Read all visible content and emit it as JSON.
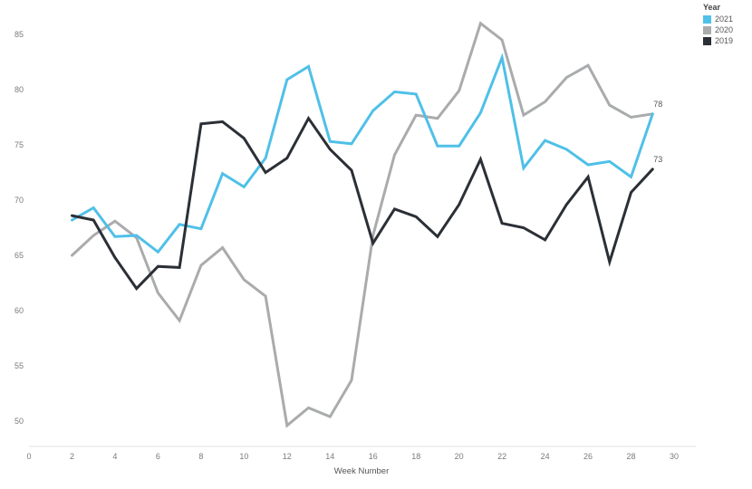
{
  "chart_data": {
    "type": "line",
    "xlabel": "Week Number",
    "ylabel": "",
    "xlim": [
      0,
      30
    ],
    "ylim": [
      47.5,
      87.5
    ],
    "x_ticks": [
      0,
      2,
      4,
      6,
      8,
      10,
      12,
      14,
      16,
      18,
      20,
      22,
      24,
      26,
      28,
      30
    ],
    "y_ticks": [
      50,
      55,
      60,
      65,
      70,
      75,
      80,
      85
    ],
    "grid": false,
    "legend": {
      "title": "Year",
      "position": "top-right",
      "entries": [
        {
          "label": "2021",
          "color": "#4fc0e8"
        },
        {
          "label": "2020",
          "color": "#a9abac"
        },
        {
          "label": "2019",
          "color": "#2b2f36"
        }
      ]
    },
    "x": [
      2,
      3,
      4,
      5,
      6,
      7,
      8,
      9,
      10,
      11,
      12,
      13,
      14,
      15,
      16,
      17,
      18,
      19,
      20,
      21,
      22,
      23,
      24,
      25,
      26,
      27,
      28,
      29
    ],
    "series": [
      {
        "name": "2020",
        "color": "#a9abac",
        "values": [
          65.0,
          66.8,
          68.1,
          66.6,
          61.6,
          59.1,
          64.1,
          65.7,
          62.8,
          61.3,
          49.6,
          51.2,
          50.4,
          53.7,
          66.8,
          74.1,
          77.7,
          77.4,
          79.9,
          86.0,
          84.5,
          77.7,
          78.9,
          81.1,
          82.2,
          78.6,
          77.5,
          77.8
        ],
        "end_label": "78"
      },
      {
        "name": "2021",
        "color": "#4fc0e8",
        "values": [
          68.2,
          69.3,
          66.7,
          66.8,
          65.3,
          67.8,
          67.4,
          72.4,
          71.2,
          73.8,
          80.9,
          82.1,
          75.3,
          75.1,
          78.1,
          79.8,
          79.6,
          74.9,
          74.9,
          77.9,
          82.9,
          72.9,
          75.4,
          74.6,
          73.2,
          73.5,
          72.1,
          77.8
        ]
      },
      {
        "name": "2019",
        "color": "#2b2f36",
        "values": [
          68.6,
          68.2,
          64.8,
          62.0,
          64.0,
          63.9,
          76.9,
          77.1,
          75.6,
          72.5,
          73.8,
          77.4,
          74.6,
          72.7,
          66.1,
          69.2,
          68.5,
          66.7,
          69.6,
          73.7,
          67.9,
          67.5,
          66.4,
          69.6,
          72.1,
          64.4,
          70.7,
          72.8
        ],
        "end_label": "73"
      }
    ]
  }
}
